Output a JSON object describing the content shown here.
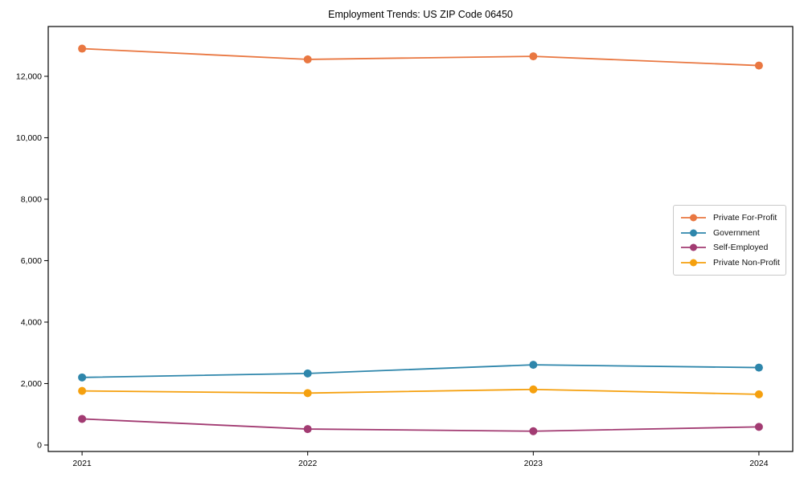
{
  "chart_data": {
    "type": "line",
    "title": "Employment Trends: US ZIP Code 06450",
    "xlabel": "",
    "ylabel": "",
    "categories": [
      "2021",
      "2022",
      "2023",
      "2024"
    ],
    "series": [
      {
        "name": "Private For-Profit",
        "color": "#E97741",
        "values": [
          12900,
          12550,
          12650,
          12350
        ]
      },
      {
        "name": "Government",
        "color": "#2E86AB",
        "values": [
          2200,
          2330,
          2610,
          2520
        ]
      },
      {
        "name": "Self-Employed",
        "color": "#A23B72",
        "values": [
          850,
          520,
          450,
          590
        ]
      },
      {
        "name": "Private Non-Profit",
        "color": "#F5A00E",
        "values": [
          1760,
          1690,
          1810,
          1650
        ]
      }
    ],
    "yticks": [
      0,
      2000,
      4000,
      6000,
      8000,
      10000,
      12000
    ],
    "ytick_labels": [
      "0",
      "2,000",
      "4,000",
      "6,000",
      "8,000",
      "10,000",
      "12,000"
    ],
    "ylim": [
      -210,
      13620
    ],
    "xlim": [
      -0.15,
      3.15
    ],
    "grid": false,
    "legend_position": "center-right",
    "axis_color": "#000000",
    "marker": "circle",
    "marker_radius": 5,
    "line_width": 1.8
  }
}
